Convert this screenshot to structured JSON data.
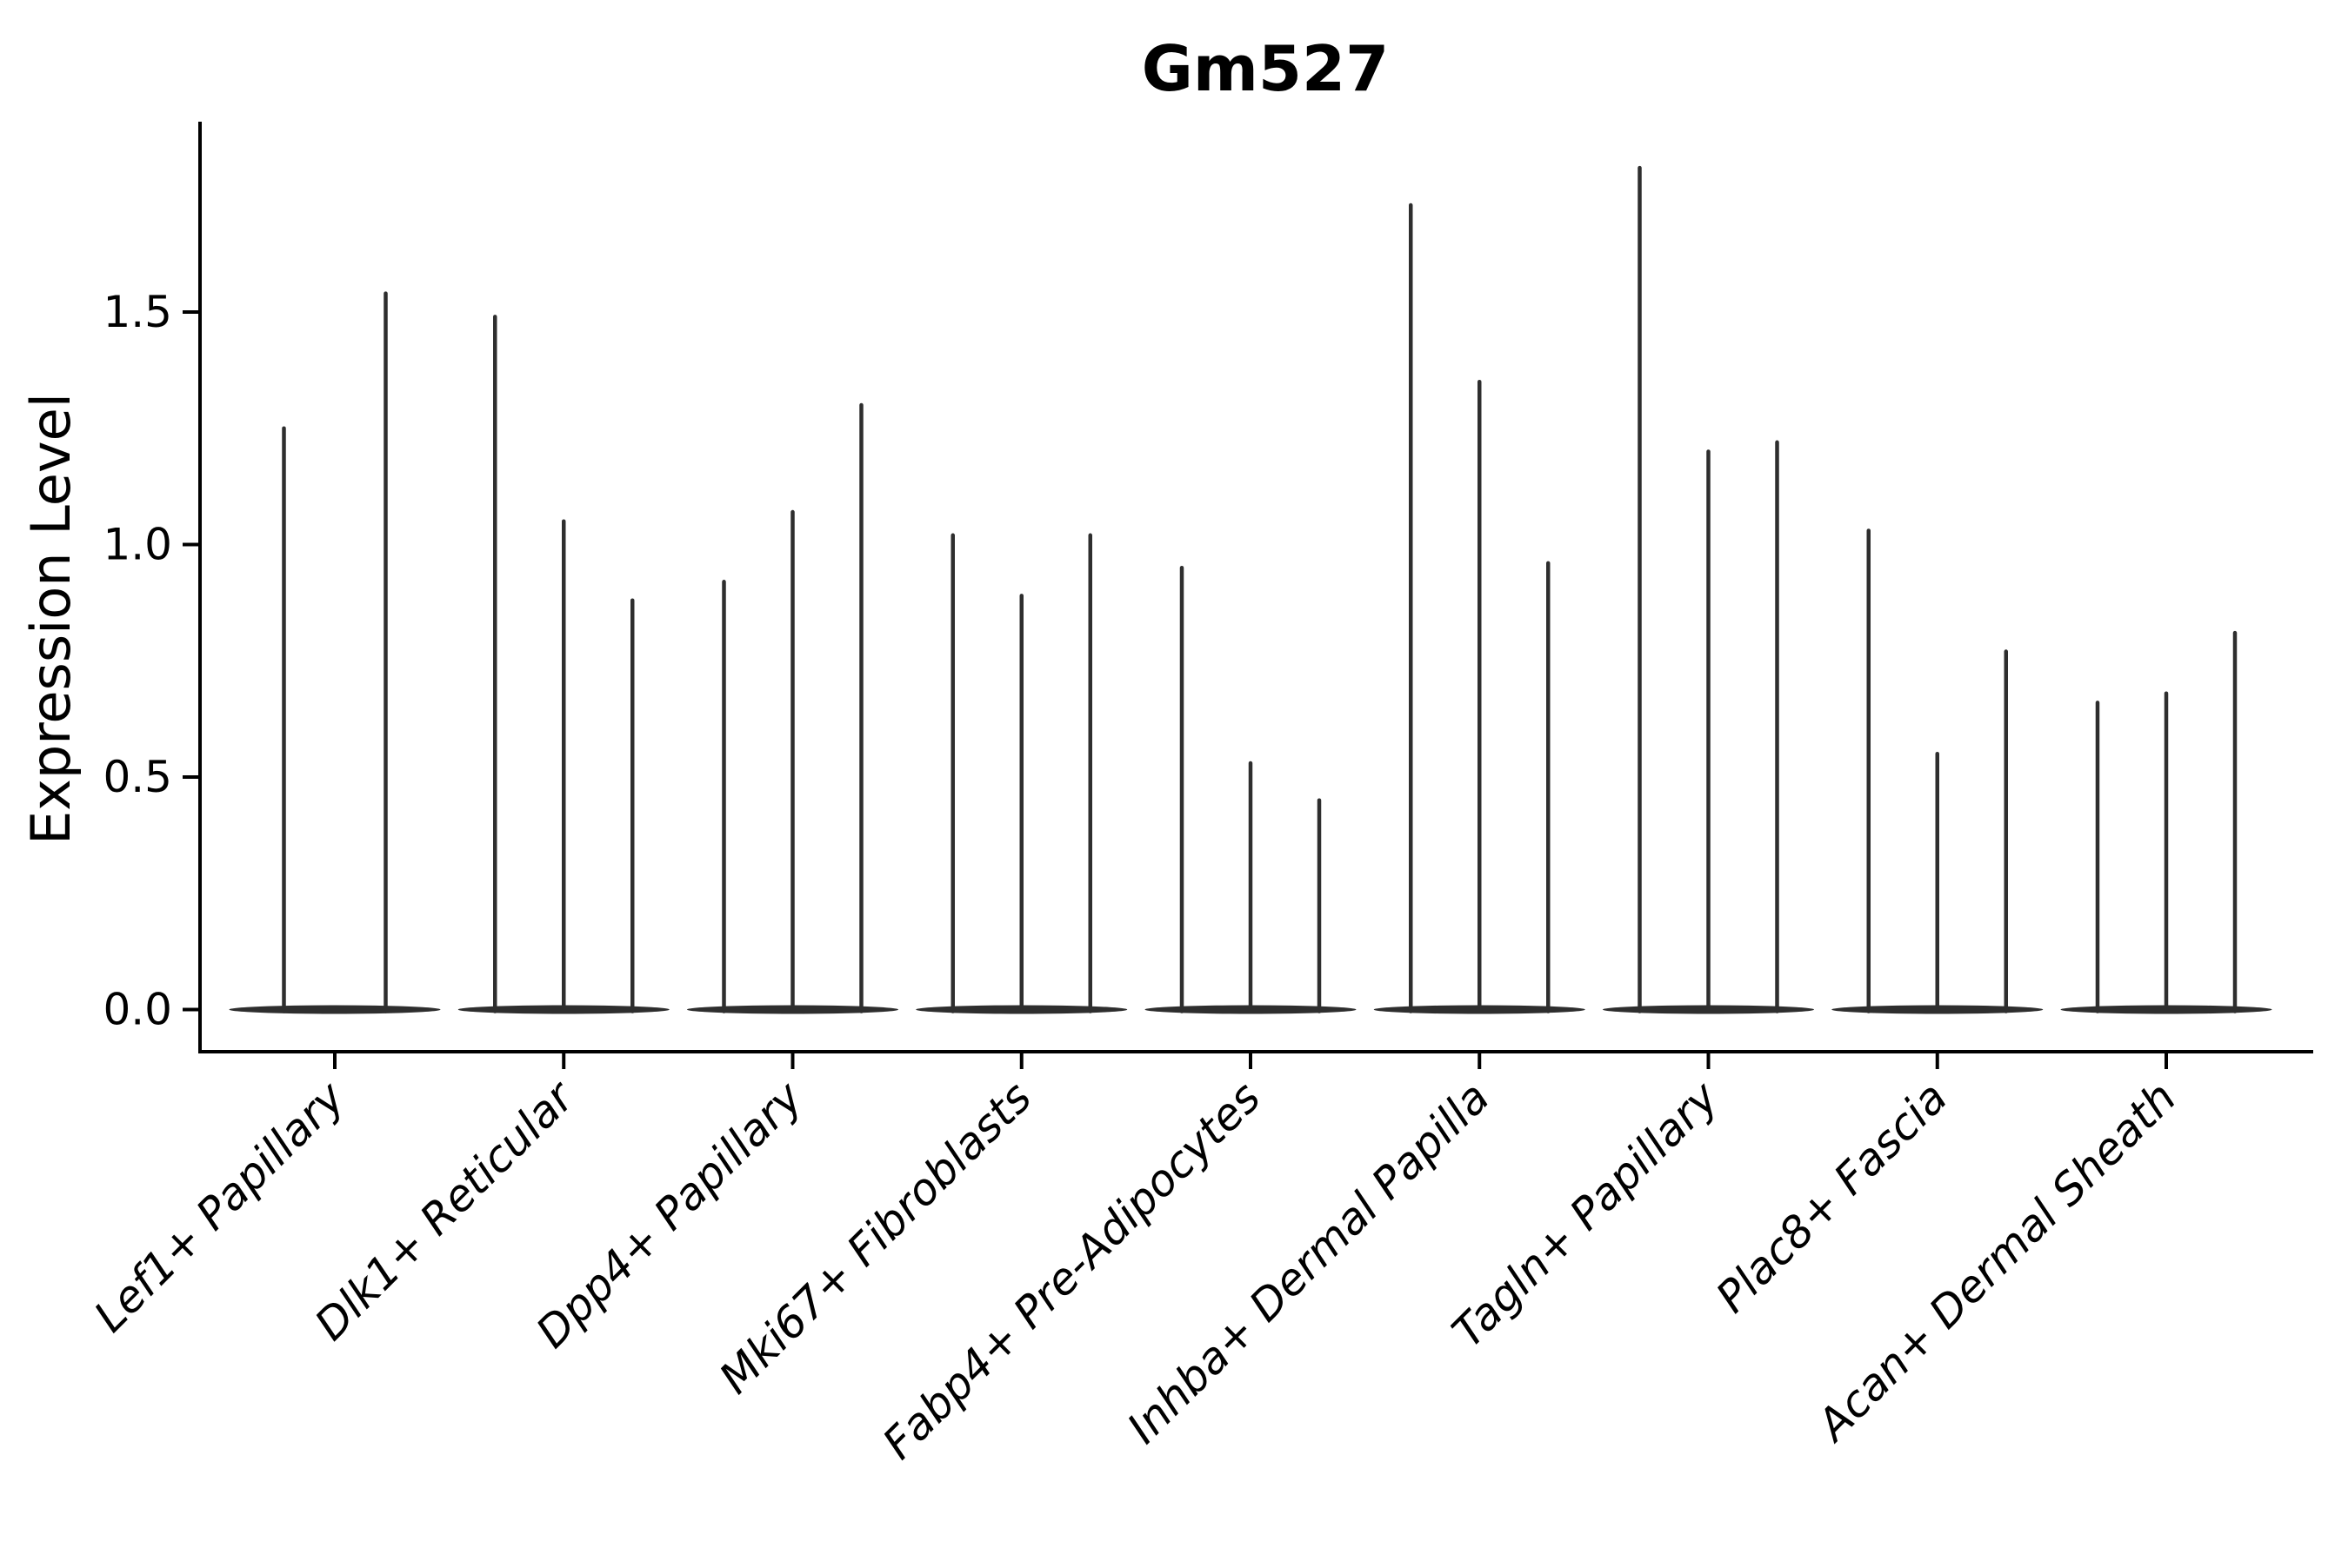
{
  "chart_data": {
    "type": "violin",
    "title": "Gm527",
    "xlabel": "",
    "ylabel": "Expression Level",
    "yticks": [
      "0.0",
      "0.5",
      "1.0",
      "1.5"
    ],
    "ylim": [
      -0.09,
      1.91
    ],
    "grid": false,
    "legend": false,
    "style_note": "needle-thin violins: vertical spike to peak expression with flat wide base at 0; x labels rotated 45deg italic",
    "categories": [
      "Lef1+ Papillary",
      "Dlk1+ Reticular",
      "Dpp4+ Papillary",
      "Mki67+ Fibroblasts",
      "Fabp4+ Pre-Adipocytes",
      "Inhba+ Dermal Papilla",
      "Tagln+ Papillary",
      "Plac8+ Fascia",
      "Acan+ Dermal Sheath"
    ],
    "series": [
      {
        "name": "Lef1+ Papillary",
        "violin_peaks": [
          1.25,
          1.54
        ]
      },
      {
        "name": "Dlk1+ Reticular",
        "violin_peaks": [
          1.49,
          1.05,
          0.88
        ]
      },
      {
        "name": "Dpp4+ Papillary",
        "violin_peaks": [
          0.92,
          1.07,
          1.3
        ]
      },
      {
        "name": "Mki67+ Fibroblasts",
        "violin_peaks": [
          1.02,
          0.89,
          1.02
        ]
      },
      {
        "name": "Fabp4+ Pre-Adipocytes",
        "violin_peaks": [
          0.95,
          0.53,
          0.45
        ]
      },
      {
        "name": "Inhba+ Dermal Papilla",
        "violin_peaks": [
          1.73,
          1.35,
          0.96
        ]
      },
      {
        "name": "Tagln+ Papillary",
        "violin_peaks": [
          1.81,
          1.2,
          1.22
        ]
      },
      {
        "name": "Plac8+ Fascia",
        "violin_peaks": [
          1.03,
          0.55,
          0.77
        ]
      },
      {
        "name": "Acan+ Dermal Sheath",
        "violin_peaks": [
          0.66,
          0.68,
          0.81
        ]
      }
    ],
    "colors": {
      "violin": "#2e2e2e",
      "axis": "#000000",
      "text": "#000000",
      "background": "#ffffff"
    }
  }
}
